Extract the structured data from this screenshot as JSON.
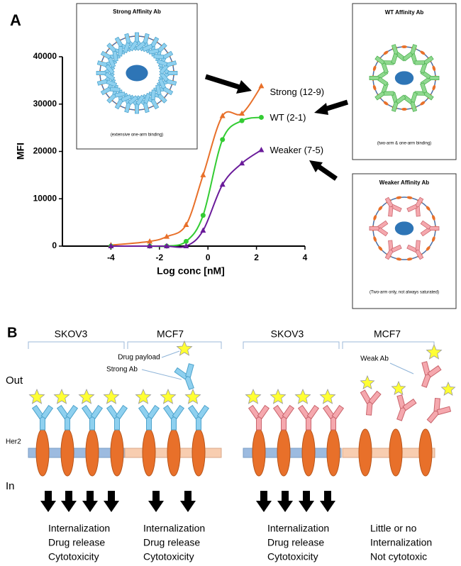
{
  "panel_labels": [
    "A",
    "B"
  ],
  "chart_data": {
    "type": "line",
    "x": [
      -4,
      -2.4,
      -1.7,
      -0.9,
      -0.2,
      0.6,
      1.4,
      2.2
    ],
    "series": [
      {
        "name": "Strong (12-9)",
        "color": "#e8702a",
        "marker": "triangle",
        "values": [
          200,
          1000,
          2000,
          4500,
          15000,
          27500,
          28000,
          33800
        ]
      },
      {
        "name": "WT (2-1)",
        "color": "#33cc33",
        "marker": "circle",
        "values": [
          0,
          0,
          0,
          1000,
          6500,
          22500,
          26500,
          27200
        ]
      },
      {
        "name": "Weaker (7-5)",
        "color": "#6a1b9a",
        "marker": "triangle",
        "values": [
          0,
          0,
          0,
          0,
          3300,
          13000,
          17500,
          20300
        ]
      }
    ],
    "xlabel": "Log conc [nM]",
    "ylabel": "MFI",
    "xlim": [
      -6,
      4
    ],
    "xticks": [
      -4,
      -2,
      0,
      2,
      4
    ],
    "ylim": [
      0,
      40000
    ],
    "yticks": [
      0,
      10000,
      20000,
      30000,
      40000
    ]
  },
  "insets": [
    {
      "title": "Strong Affinity Ab",
      "caption": "(extensive one-arm binding)"
    },
    {
      "title": "WT Affinity Ab",
      "caption": "(two-arm & one-arm binding)"
    },
    {
      "title": "Weaker Affinity Ab",
      "caption": "(Two-arm only, not always saturated)"
    }
  ],
  "panel_b": {
    "cell_lines": [
      "SKOV3",
      "MCF7",
      "SKOV3",
      "MCF7"
    ],
    "side_labels": {
      "out": "Out",
      "in": "In",
      "receptor": "Her2"
    },
    "annotations": [
      "Drug payload",
      "Strong Ab",
      "Weak Ab"
    ],
    "outcomes": [
      [
        "Internalization",
        "Drug release",
        "Cytotoxicity"
      ],
      [
        "Internalization",
        "Drug release",
        "Cytotoxicity"
      ],
      [
        "Internalization",
        "Drug release",
        "Cytotoxicity"
      ],
      [
        "Little or no",
        "Internalization",
        "Not cytotoxic"
      ]
    ]
  }
}
